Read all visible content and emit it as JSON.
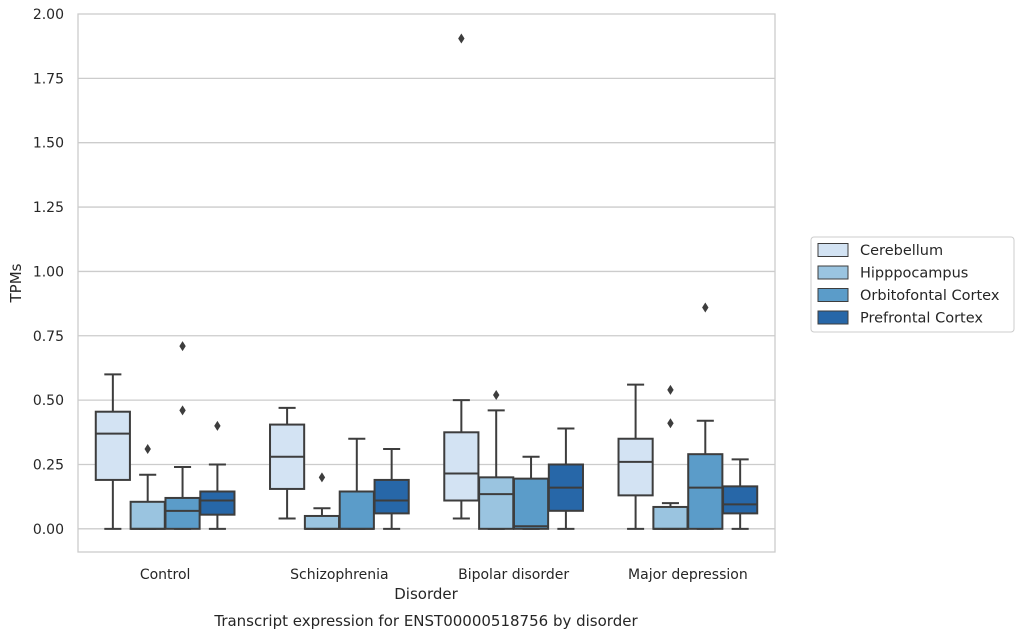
{
  "chart_data": {
    "type": "box",
    "xlabel": "Disorder",
    "ylabel": "TPMs",
    "caption": "Transcript expression for ENST00000518756 by disorder",
    "categories": [
      "Control",
      "Schizophrenia",
      "Bipolar disorder",
      "Major depression"
    ],
    "ylim": [
      -0.09,
      2.0
    ],
    "yticks": [
      "0.00",
      "0.25",
      "0.50",
      "0.75",
      "1.00",
      "1.25",
      "1.50",
      "1.75",
      "2.00"
    ],
    "grid": true,
    "legend_position": "right",
    "series": [
      {
        "name": "Cerebellum",
        "color": "#d3e3f3",
        "boxes": [
          {
            "whisker_low": 0.0,
            "q1": 0.19,
            "median": 0.37,
            "q3": 0.455,
            "whisker_high": 0.6,
            "outliers": []
          },
          {
            "whisker_low": 0.04,
            "q1": 0.155,
            "median": 0.28,
            "q3": 0.405,
            "whisker_high": 0.47,
            "outliers": []
          },
          {
            "whisker_low": 0.04,
            "q1": 0.11,
            "median": 0.215,
            "q3": 0.375,
            "whisker_high": 0.5,
            "outliers": [
              1.905
            ]
          },
          {
            "whisker_low": 0.0,
            "q1": 0.13,
            "median": 0.26,
            "q3": 0.35,
            "whisker_high": 0.56,
            "outliers": []
          }
        ]
      },
      {
        "name": "Hipppocampus",
        "color": "#9ac4e0",
        "boxes": [
          {
            "whisker_low": 0.0,
            "q1": 0.0,
            "median": 0.0,
            "q3": 0.105,
            "whisker_high": 0.21,
            "outliers": [
              0.31
            ]
          },
          {
            "whisker_low": 0.0,
            "q1": 0.0,
            "median": 0.0,
            "q3": 0.05,
            "whisker_high": 0.08,
            "outliers": [
              0.2
            ]
          },
          {
            "whisker_low": 0.0,
            "q1": 0.0,
            "median": 0.135,
            "q3": 0.2,
            "whisker_high": 0.46,
            "outliers": [
              0.52
            ]
          },
          {
            "whisker_low": 0.0,
            "q1": 0.0,
            "median": 0.0,
            "q3": 0.085,
            "whisker_high": 0.1,
            "outliers": [
              0.41,
              0.54
            ]
          }
        ]
      },
      {
        "name": "Orbitofontal Cortex",
        "color": "#5b9cc9",
        "boxes": [
          {
            "whisker_low": 0.0,
            "q1": 0.0,
            "median": 0.07,
            "q3": 0.12,
            "whisker_high": 0.24,
            "outliers": [
              0.46,
              0.71
            ]
          },
          {
            "whisker_low": 0.0,
            "q1": 0.0,
            "median": 0.0,
            "q3": 0.145,
            "whisker_high": 0.35,
            "outliers": []
          },
          {
            "whisker_low": 0.0,
            "q1": 0.0,
            "median": 0.01,
            "q3": 0.195,
            "whisker_high": 0.28,
            "outliers": []
          },
          {
            "whisker_low": 0.0,
            "q1": 0.0,
            "median": 0.16,
            "q3": 0.29,
            "whisker_high": 0.42,
            "outliers": [
              0.86
            ]
          }
        ]
      },
      {
        "name": "Prefrontal Cortex",
        "color": "#2767a8",
        "boxes": [
          {
            "whisker_low": 0.0,
            "q1": 0.055,
            "median": 0.11,
            "q3": 0.145,
            "whisker_high": 0.25,
            "outliers": [
              0.4
            ]
          },
          {
            "whisker_low": 0.0,
            "q1": 0.06,
            "median": 0.11,
            "q3": 0.19,
            "whisker_high": 0.31,
            "outliers": []
          },
          {
            "whisker_low": 0.0,
            "q1": 0.07,
            "median": 0.16,
            "q3": 0.25,
            "whisker_high": 0.39,
            "outliers": []
          },
          {
            "whisker_low": 0.0,
            "q1": 0.06,
            "median": 0.095,
            "q3": 0.165,
            "whisker_high": 0.27,
            "outliers": []
          }
        ]
      }
    ]
  }
}
